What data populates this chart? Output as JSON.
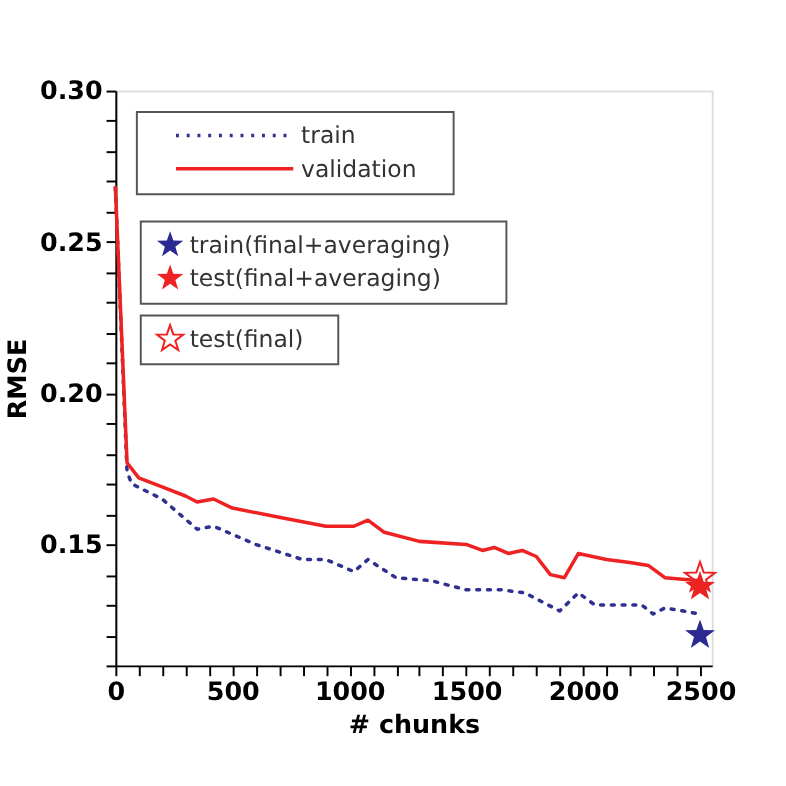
{
  "chart_data": {
    "type": "line",
    "xlabel": "# chunks",
    "ylabel": "RMSE",
    "xlim": [
      0,
      2550
    ],
    "ylim": [
      0.11,
      0.3
    ],
    "xticks": [
      0,
      {
        "value": 100,
        "label": null
      },
      {
        "value": 200,
        "label": null
      },
      {
        "value": 300,
        "label": null
      },
      {
        "value": 400,
        "label": null
      },
      500,
      {
        "value": 600,
        "label": null
      },
      {
        "value": 700,
        "label": null
      },
      {
        "value": 800,
        "label": null
      },
      {
        "value": 900,
        "label": null
      },
      1000,
      {
        "value": 1100,
        "label": null
      },
      {
        "value": 1200,
        "label": null
      },
      {
        "value": 1300,
        "label": null
      },
      {
        "value": 1400,
        "label": null
      },
      1500,
      {
        "value": 1600,
        "label": null
      },
      {
        "value": 1700,
        "label": null
      },
      {
        "value": 1800,
        "label": null
      },
      {
        "value": 1900,
        "label": null
      },
      2000,
      {
        "value": 2100,
        "label": null
      },
      {
        "value": 2200,
        "label": null
      },
      {
        "value": 2300,
        "label": null
      },
      {
        "value": 2400,
        "label": null
      },
      2500
    ],
    "yticks": [
      {
        "value": 0.11,
        "label": null
      },
      {
        "value": 0.12,
        "label": null
      },
      {
        "value": 0.13,
        "label": null
      },
      {
        "value": 0.14,
        "label": null
      },
      {
        "value": 0.15,
        "label": "0.15"
      },
      {
        "value": 0.16,
        "label": null
      },
      {
        "value": 0.17,
        "label": null
      },
      {
        "value": 0.18,
        "label": null
      },
      {
        "value": 0.19,
        "label": null
      },
      {
        "value": 0.2,
        "label": "0.20"
      },
      {
        "value": 0.21,
        "label": null
      },
      {
        "value": 0.22,
        "label": null
      },
      {
        "value": 0.23,
        "label": null
      },
      {
        "value": 0.24,
        "label": null
      },
      {
        "value": 0.25,
        "label": "0.25"
      },
      {
        "value": 0.26,
        "label": null
      },
      {
        "value": 0.27,
        "label": null
      },
      {
        "value": 0.28,
        "label": null
      },
      {
        "value": 0.29,
        "label": null
      },
      {
        "value": 0.3,
        "label": "0.30"
      }
    ],
    "grid": false,
    "legend": "top left",
    "series": [
      {
        "name": "train",
        "line_style": "dotted",
        "marker": "none",
        "color": "#303090",
        "x": [
          0,
          50,
          70,
          200,
          350,
          420,
          600,
          800,
          900,
          1020,
          1080,
          1200,
          1350,
          1500,
          1650,
          1750,
          1900,
          1980,
          2050,
          2250,
          2300,
          2350,
          2500
        ],
        "values": [
          0.268,
          0.174,
          0.17,
          0.165,
          0.155,
          0.156,
          0.15,
          0.145,
          0.145,
          0.141,
          0.145,
          0.139,
          0.138,
          0.135,
          0.135,
          0.134,
          0.128,
          0.134,
          0.13,
          0.13,
          0.127,
          0.129,
          0.127
        ]
      },
      {
        "name": "validation",
        "line_style": "solid",
        "marker": "none",
        "color": "#ee2222",
        "x": [
          0,
          50,
          100,
          200,
          300,
          350,
          420,
          500,
          700,
          900,
          1020,
          1080,
          1150,
          1300,
          1500,
          1570,
          1620,
          1680,
          1740,
          1800,
          1860,
          1920,
          1980,
          2100,
          2200,
          2280,
          2350,
          2500
        ],
        "values": [
          0.268,
          0.177,
          0.172,
          0.169,
          0.166,
          0.164,
          0.165,
          0.162,
          0.159,
          0.156,
          0.156,
          0.158,
          0.154,
          0.151,
          0.15,
          0.148,
          0.149,
          0.147,
          0.148,
          0.146,
          0.14,
          0.139,
          0.147,
          0.145,
          0.144,
          0.143,
          0.139,
          0.138
        ]
      },
      {
        "name": "train(final+averaging)",
        "type": "scatter",
        "marker": "star",
        "color": "#2a2a90",
        "x": [
          2500
        ],
        "values": [
          0.12
        ]
      },
      {
        "name": "test(final+averaging)",
        "type": "scatter",
        "marker": "star",
        "color": "#ee2222",
        "x": [
          2500
        ],
        "values": [
          0.136
        ]
      },
      {
        "name": "test(final)",
        "type": "scatter",
        "marker": "star",
        "color": "#ee2222",
        "x": [
          2500
        ],
        "values": [
          0.139
        ]
      }
    ]
  }
}
